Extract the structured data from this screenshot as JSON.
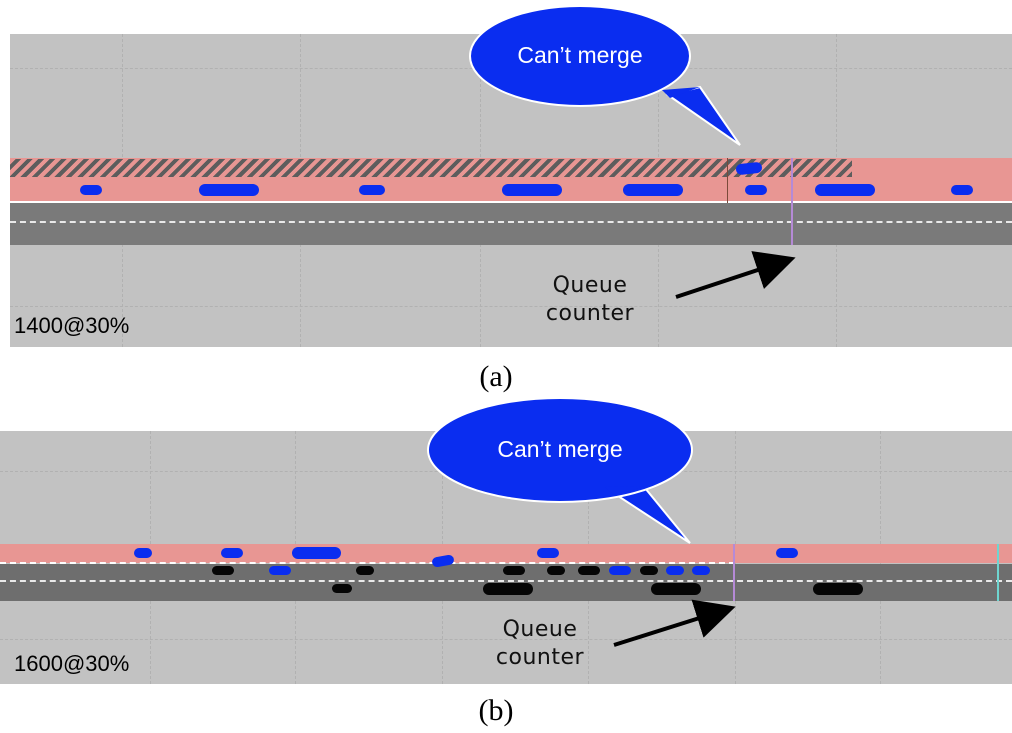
{
  "panels": [
    {
      "id": "a",
      "label": "1400@30%",
      "caption": "(a)",
      "bubble_text": "Can’t merge",
      "queue_label_lines": [
        "Queue",
        "counter"
      ],
      "colors": {
        "merge_lane": "#e89693",
        "mainline": "#7a7a7a",
        "hov_vehicle": "#0a2df0",
        "background": "#c2c2c2"
      }
    },
    {
      "id": "b",
      "label": "1600@30%",
      "caption": "(b)",
      "bubble_text": "Can’t merge",
      "queue_label_lines": [
        "Queue",
        "counter"
      ],
      "colors": {
        "merge_lane": "#e89693",
        "mainline": "#6e6e6e",
        "hov_vehicle": "#0a2df0",
        "other_vehicle": "#050505",
        "background": "#c2c2c2"
      }
    }
  ]
}
